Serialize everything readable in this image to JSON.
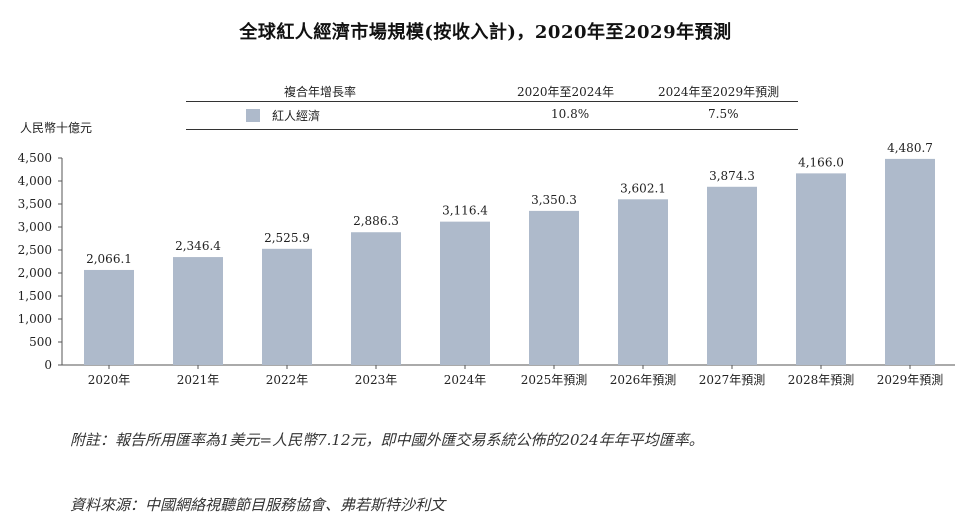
{
  "title": "全球紅人經濟市場規模(按收入計)，2020年至2029年預測",
  "cagr_table": {
    "header_label": "複合年增長率",
    "col1_header": "2020年至2024年",
    "col2_header": "2024年至2029年預測",
    "row_label": "紅人經濟",
    "col1_value": "10.8%",
    "col2_value": "7.5%"
  },
  "unit_label": "人民幣十億元",
  "colors": {
    "bar": "#aebacb",
    "axis": "#555555"
  },
  "chart_data": {
    "type": "bar",
    "title": "全球紅人經濟市場規模(按收入計)，2020年至2029年預測",
    "xlabel": "",
    "ylabel": "人民幣十億元",
    "categories": [
      "2020年",
      "2021年",
      "2022年",
      "2023年",
      "2024年",
      "2025年預測",
      "2026年預測",
      "2027年預測",
      "2028年預測",
      "2029年預測"
    ],
    "values": [
      2066.1,
      2346.4,
      2525.9,
      2886.3,
      3116.4,
      3350.3,
      3602.1,
      3874.3,
      4166.0,
      4480.7
    ],
    "value_labels": [
      "2,066.1",
      "2,346.4",
      "2,525.9",
      "2,886.3",
      "3,116.4",
      "3,350.3",
      "3,602.1",
      "3,874.3",
      "4,166.0",
      "4,480.7"
    ],
    "series": [
      {
        "name": "紅人經濟",
        "values": [
          2066.1,
          2346.4,
          2525.9,
          2886.3,
          3116.4,
          3350.3,
          3602.1,
          3874.3,
          4166.0,
          4480.7
        ]
      }
    ],
    "ylim": [
      0,
      4500
    ],
    "yticks": [
      0,
      500,
      1000,
      1500,
      2000,
      2500,
      3000,
      3500,
      4000,
      4500
    ],
    "ytick_labels": [
      "0",
      "500",
      "1,000",
      "1,500",
      "2,000",
      "2,500",
      "3,000",
      "3,500",
      "4,000",
      "4,500"
    ],
    "grid": false
  },
  "notes": {
    "footnote": "附註：報告所用匯率為1美元=人民幣7.12元，即中國外匯交易系統公佈的2024年年平均匯率。",
    "source": "資料來源：中國網絡視聽節目服務協會、弗若斯特沙利文"
  }
}
